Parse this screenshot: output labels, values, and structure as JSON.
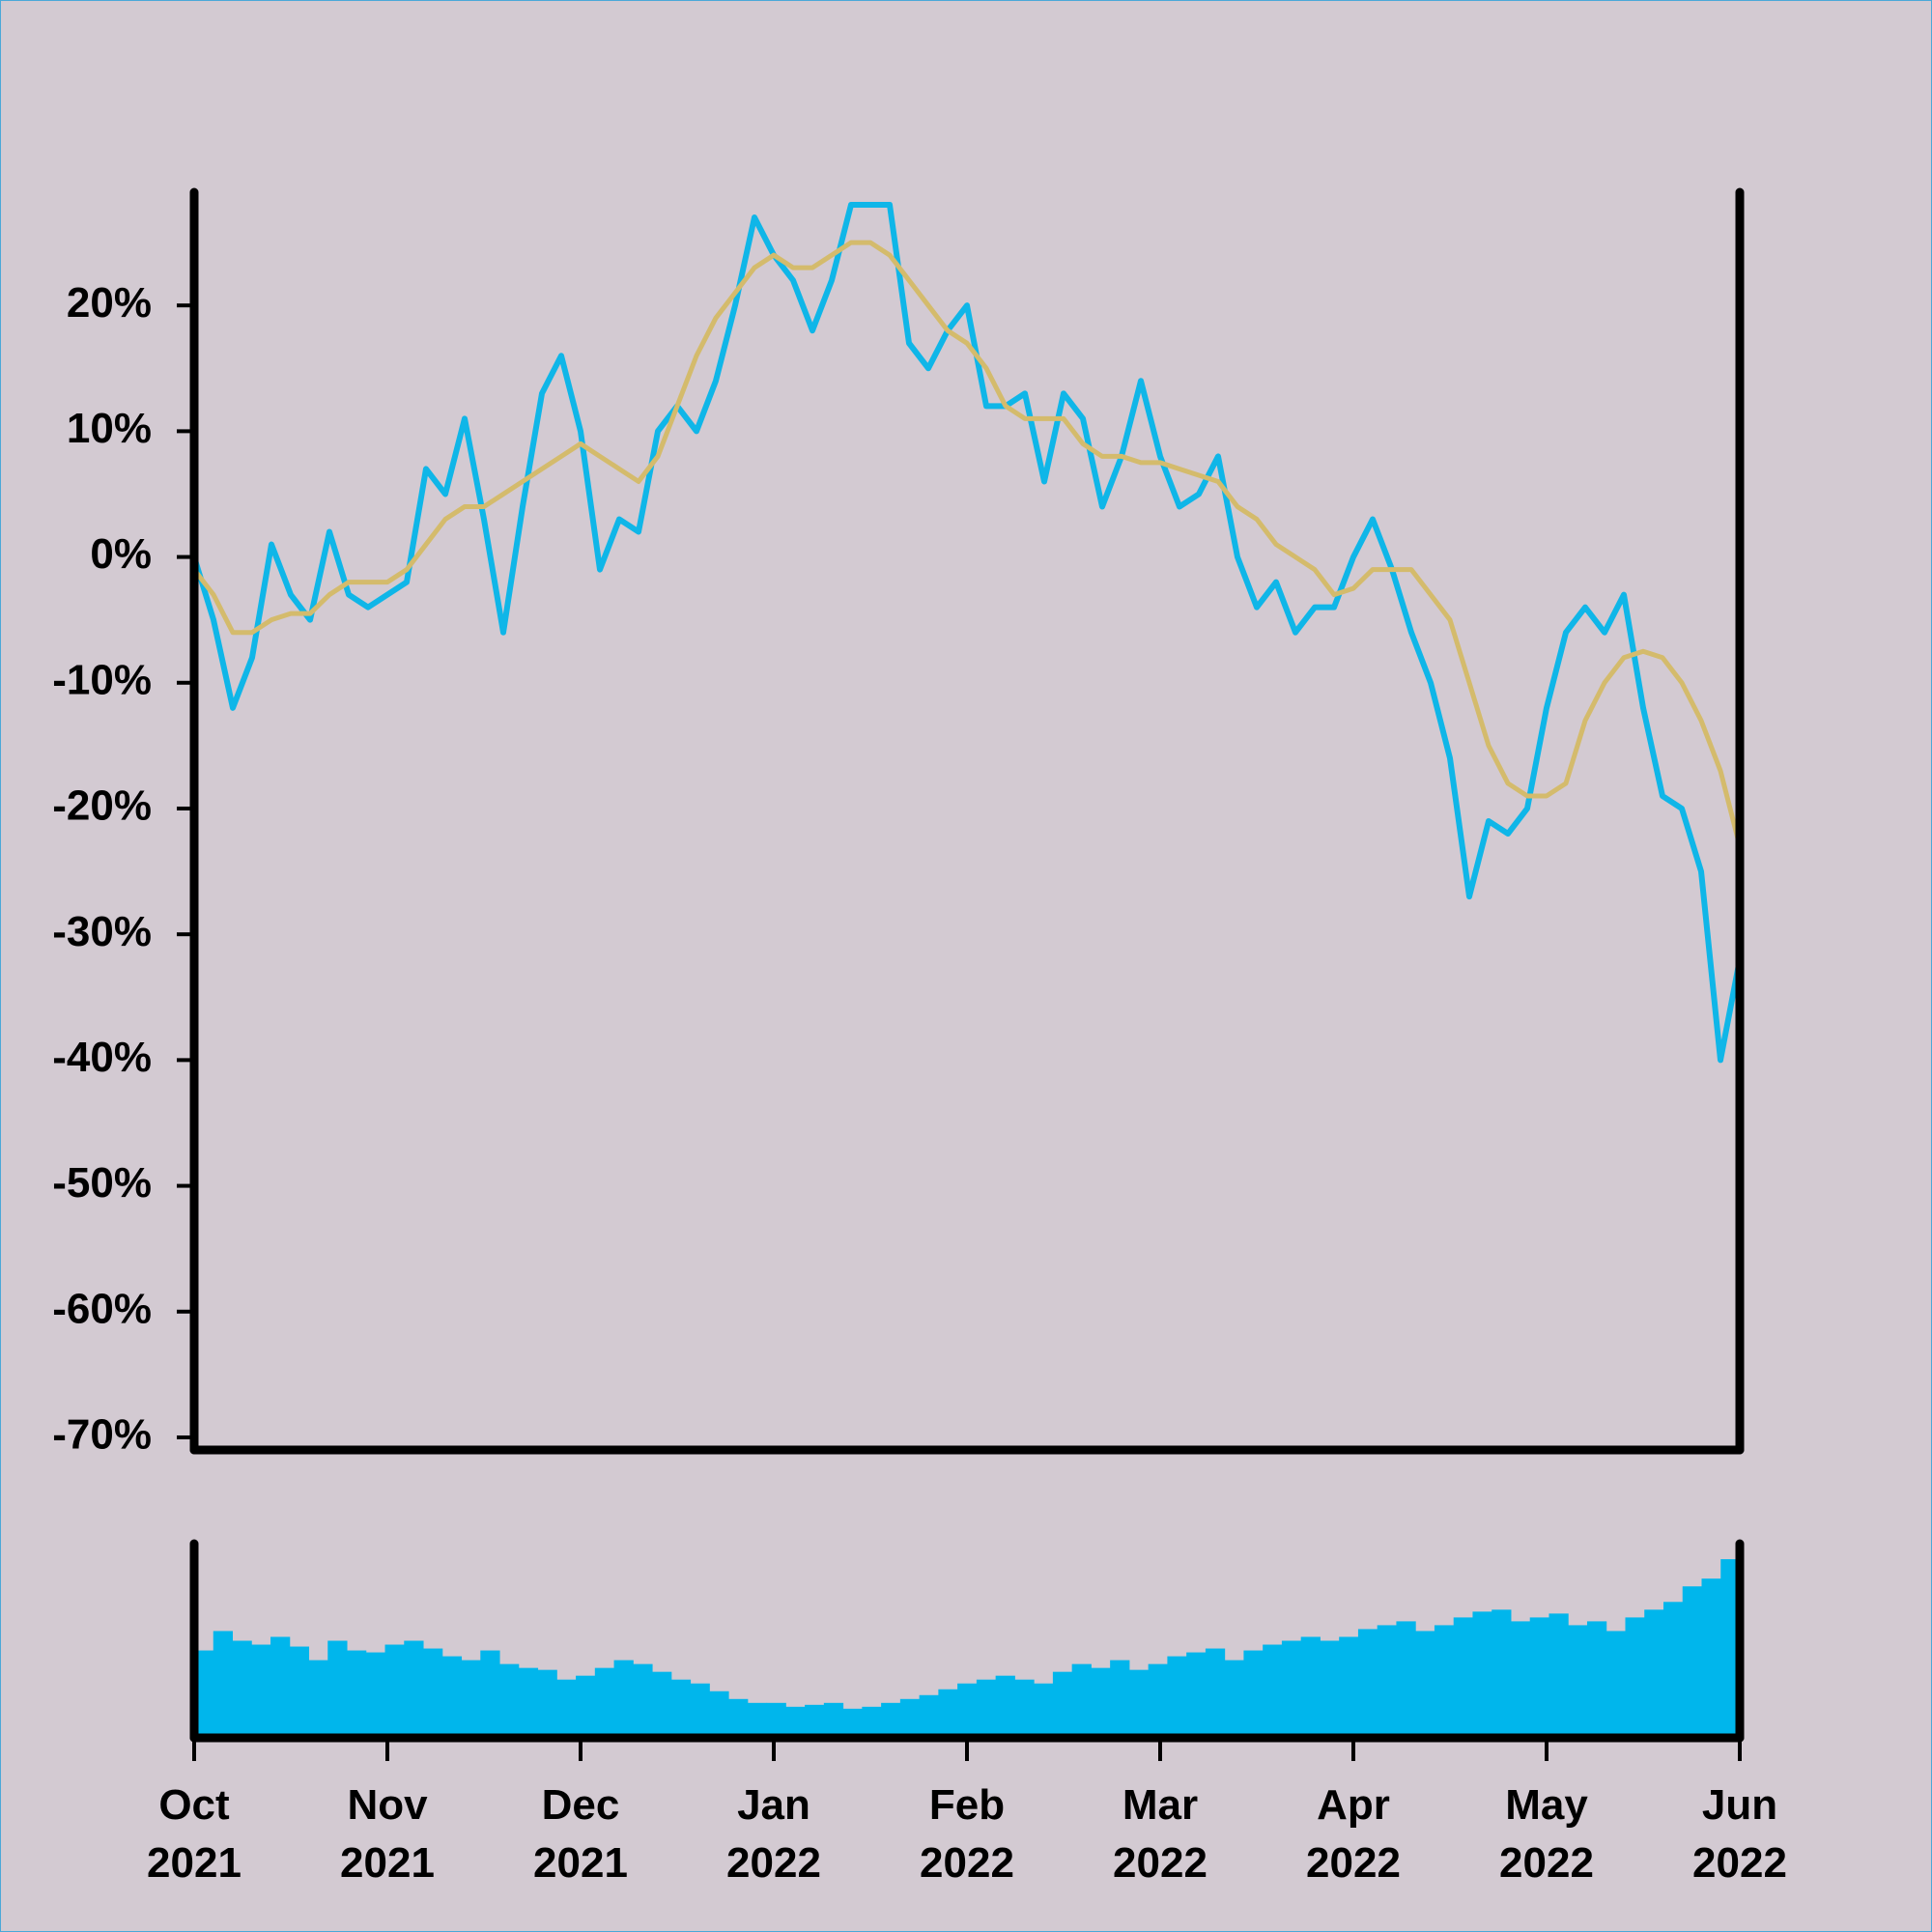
{
  "chart_data": [
    {
      "type": "line",
      "xlim": [
        0,
        8
      ],
      "xticks": [
        {
          "value": 0,
          "label": "Oct 2021"
        },
        {
          "value": 1,
          "label": "Nov 2021"
        },
        {
          "value": 2,
          "label": "Dec 2021"
        },
        {
          "value": 3,
          "label": "Jan 2022"
        },
        {
          "value": 4,
          "label": "Feb 2022"
        },
        {
          "value": 5,
          "label": "Mar 2022"
        },
        {
          "value": 6,
          "label": "Apr 2022"
        },
        {
          "value": 7,
          "label": "May 2022"
        },
        {
          "value": 8,
          "label": "Jun 2022"
        }
      ],
      "ylim": [
        -71,
        29
      ],
      "yticks": [
        {
          "value": 20,
          "label": "20%"
        },
        {
          "value": 10,
          "label": "10%"
        },
        {
          "value": 0,
          "label": "0%"
        },
        {
          "value": -10,
          "label": "-10%"
        },
        {
          "value": -20,
          "label": "-20%"
        },
        {
          "value": -30,
          "label": "-30%"
        },
        {
          "value": -40,
          "label": "-40%"
        },
        {
          "value": -50,
          "label": "-50%"
        },
        {
          "value": -60,
          "label": "-60%"
        },
        {
          "value": -70,
          "label": "-70%"
        }
      ],
      "x": [
        0,
        0.1,
        0.2,
        0.3,
        0.4,
        0.5,
        0.6,
        0.7,
        0.8,
        0.9,
        1,
        1.1,
        1.2,
        1.3,
        1.4,
        1.5,
        1.6,
        1.7,
        1.8,
        1.9,
        2,
        2.1,
        2.2,
        2.3,
        2.4,
        2.5,
        2.6,
        2.7,
        2.8,
        2.9,
        3,
        3.1,
        3.2,
        3.3,
        3.4,
        3.5,
        3.6,
        3.7,
        3.8,
        3.9,
        4,
        4.1,
        4.2,
        4.3,
        4.4,
        4.5,
        4.6,
        4.7,
        4.8,
        4.9,
        5,
        5.1,
        5.2,
        5.3,
        5.4,
        5.5,
        5.6,
        5.7,
        5.8,
        5.9,
        6,
        6.1,
        6.2,
        6.3,
        6.4,
        6.5,
        6.6,
        6.7,
        6.8,
        6.9,
        7,
        7.1,
        7.2,
        7.3,
        7.4,
        7.5,
        7.6,
        7.7,
        7.8,
        7.9,
        8
      ],
      "series": [
        {
          "color": "#0fb6e8",
          "values": [
            0,
            -5,
            -12,
            -8,
            1,
            -3,
            -5,
            2,
            -3,
            -4,
            -3,
            -2,
            7,
            5,
            11,
            3,
            -6,
            4,
            13,
            16,
            10,
            -1,
            3,
            2,
            10,
            12,
            10,
            14,
            20,
            27,
            24,
            22,
            18,
            22,
            28,
            28,
            28,
            17,
            15,
            18,
            20,
            12,
            12,
            13,
            6,
            13,
            11,
            4,
            8,
            14,
            8,
            4,
            5,
            8,
            0,
            -4,
            -2,
            -6,
            -4,
            -4,
            0,
            3,
            -1,
            -6,
            -10,
            -16,
            -27,
            -21,
            -22,
            -20,
            -12,
            -6,
            -4,
            -6,
            -3,
            -12,
            -19,
            -20,
            -25,
            -40,
            -32
          ]
        },
        {
          "color": "#d4bb6c",
          "values": [
            -1,
            -3,
            -6,
            -6,
            -5,
            -4.5,
            -4.5,
            -3,
            -2,
            -2,
            -2,
            -1,
            1,
            3,
            4,
            4,
            5,
            6,
            7,
            8,
            9,
            8,
            7,
            6,
            8,
            12,
            16,
            19,
            21,
            23,
            24,
            23,
            23,
            24,
            25,
            25,
            24,
            22,
            20,
            18,
            17,
            15,
            12,
            11,
            11,
            11,
            9,
            8,
            8,
            7.5,
            7.5,
            7,
            6.5,
            6,
            4,
            3,
            1,
            0,
            -1,
            -3,
            -2.5,
            -1,
            -1,
            -1,
            -3,
            -5,
            -10,
            -15,
            -18,
            -19,
            -19,
            -18,
            -13,
            -10,
            -8,
            -7.5,
            -8,
            -10,
            -13,
            -17,
            -23
          ]
        }
      ]
    },
    {
      "type": "bar",
      "color": "#00b6ec",
      "ylim": [
        0,
        100
      ],
      "values": [
        45,
        55,
        50,
        48,
        52,
        47,
        40,
        50,
        45,
        44,
        48,
        50,
        46,
        42,
        40,
        45,
        38,
        36,
        35,
        30,
        32,
        36,
        40,
        38,
        34,
        30,
        28,
        24,
        20,
        18,
        18,
        16,
        17,
        18,
        15,
        16,
        18,
        20,
        22,
        25,
        28,
        30,
        32,
        30,
        28,
        34,
        38,
        36,
        40,
        35,
        38,
        42,
        44,
        46,
        40,
        45,
        48,
        50,
        52,
        50,
        52,
        56,
        58,
        60,
        55,
        58,
        62,
        65,
        66,
        60,
        62,
        64,
        58,
        60,
        55,
        62,
        66,
        70,
        78,
        82,
        92
      ]
    }
  ]
}
